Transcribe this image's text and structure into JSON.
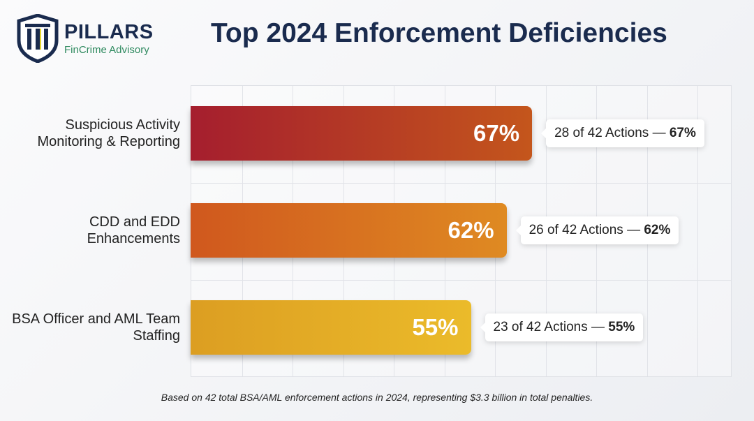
{
  "logo": {
    "brand": "PILLARS",
    "tagline": "FinCrime Advisory"
  },
  "chart_data": {
    "type": "bar",
    "orientation": "horizontal",
    "title": "Top 2024 Enforcement Deficiencies",
    "categories": [
      "Suspicious Activity Monitoring & Reporting",
      "CDD and EDD Enhancements",
      "BSA Officer and AML Team Staffing"
    ],
    "values": [
      67,
      62,
      55
    ],
    "data_labels": [
      "67%",
      "62%",
      "55%"
    ],
    "annotations": [
      {
        "text": "28 of 42 Actions — ",
        "bold": "67%"
      },
      {
        "text": "26 of 42 Actions — ",
        "bold": "62%"
      },
      {
        "text": "23 of 42 Actions — ",
        "bold": "55%"
      }
    ],
    "colors": [
      [
        "#a51e2e",
        "#c4561c"
      ],
      [
        "#d0581e",
        "#df8a22"
      ],
      [
        "#dc9e22",
        "#ebbb2a"
      ]
    ],
    "xlim": [
      0,
      100
    ],
    "grid": true
  },
  "footnote": "Based on 42 total BSA/AML enforcement actions in 2024, representing $3.3 billion in total penalties."
}
